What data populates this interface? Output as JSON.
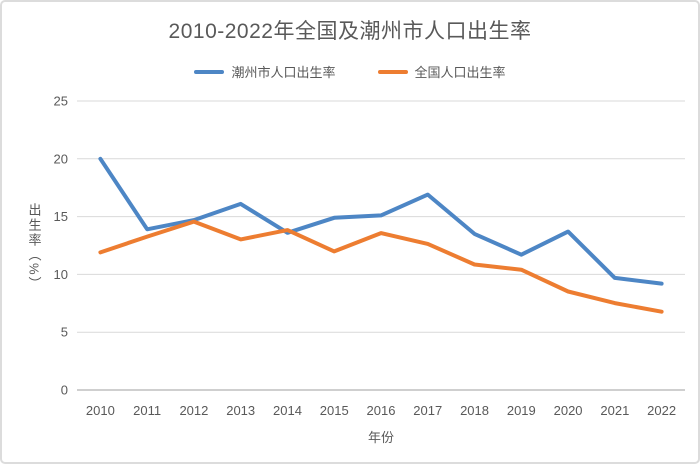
{
  "title": "2010-2022年全国及潮州市人口出生率",
  "colors": {
    "background": "#ffffff",
    "card_border": "#dcdcdc",
    "title_text": "#595959",
    "tick_text": "#595959",
    "grid": "#d9d9d9",
    "axis_line": "#bfbfbf",
    "series_blue": "#4d86c5",
    "series_orange": "#ed7d31"
  },
  "chart_data": {
    "type": "line",
    "title": "2010-2022年全国及潮州市人口出生率",
    "xlabel": "年份",
    "ylabel": "出生率（%）",
    "categories": [
      "2010",
      "2011",
      "2012",
      "2013",
      "2014",
      "2015",
      "2016",
      "2017",
      "2018",
      "2019",
      "2020",
      "2021",
      "2022"
    ],
    "series": [
      {
        "name": "潮州市人口出生率",
        "color": "#4d86c5",
        "values": [
          20.0,
          13.9,
          14.7,
          16.1,
          13.6,
          14.9,
          15.1,
          16.9,
          13.5,
          11.7,
          13.7,
          9.7,
          9.2
        ]
      },
      {
        "name": "全国人口出生率",
        "color": "#ed7d31",
        "values": [
          11.9,
          13.27,
          14.57,
          13.03,
          13.83,
          11.99,
          13.57,
          12.64,
          10.86,
          10.41,
          8.52,
          7.52,
          6.77
        ]
      }
    ],
    "ylim": [
      0,
      25
    ],
    "yticks": [
      0,
      5,
      10,
      15,
      20,
      25
    ],
    "grid": true,
    "legend_position": "top"
  }
}
